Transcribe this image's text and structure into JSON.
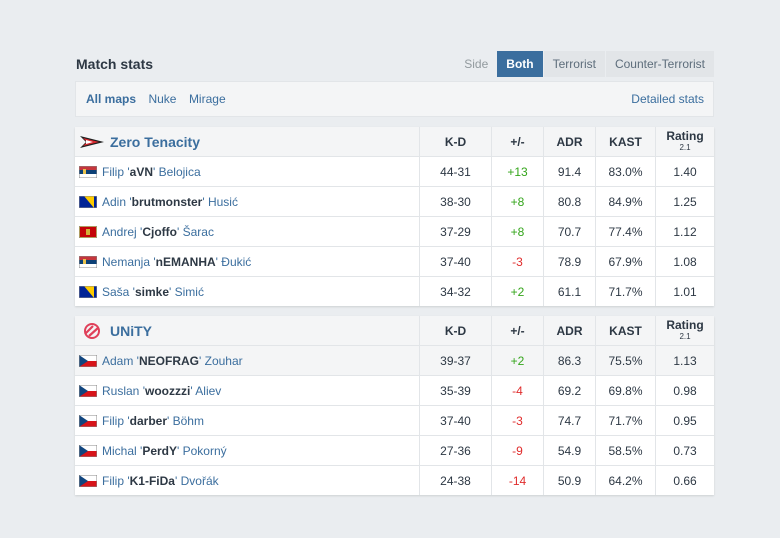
{
  "header": {
    "title": "Match stats",
    "side_label": "Side",
    "side_buttons": [
      "Both",
      "Terrorist",
      "Counter-Terrorist"
    ]
  },
  "maps": {
    "items": [
      "All maps",
      "Nuke",
      "Mirage"
    ],
    "detailed": "Detailed stats"
  },
  "columns": {
    "kd": "K-D",
    "pm": "+/-",
    "adr": "ADR",
    "kast": "KAST",
    "rating": "Rating",
    "rating_ver": "2.1"
  },
  "teams": [
    {
      "name": "Zero Tenacity",
      "players": [
        {
          "first": "Filip '",
          "nick": "aVN",
          "last": "' Belojica",
          "kd": "44-31",
          "pm": "+13",
          "adr": "91.4",
          "kast": "83.0%",
          "rating": "1.40"
        },
        {
          "first": "Adin '",
          "nick": "brutmonster",
          "last": "' Husić",
          "kd": "38-30",
          "pm": "+8",
          "adr": "80.8",
          "kast": "84.9%",
          "rating": "1.25"
        },
        {
          "first": "Andrej '",
          "nick": "Cjoffo",
          "last": "' Šarac",
          "kd": "37-29",
          "pm": "+8",
          "adr": "70.7",
          "kast": "77.4%",
          "rating": "1.12"
        },
        {
          "first": "Nemanja '",
          "nick": "nEMANHA",
          "last": "' Đukić",
          "kd": "37-40",
          "pm": "-3",
          "adr": "78.9",
          "kast": "67.9%",
          "rating": "1.08"
        },
        {
          "first": "Saša '",
          "nick": "simke",
          "last": "' Simić",
          "kd": "34-32",
          "pm": "+2",
          "adr": "61.1",
          "kast": "71.7%",
          "rating": "1.01"
        }
      ]
    },
    {
      "name": "UNiTY",
      "players": [
        {
          "first": "Adam '",
          "nick": "NEOFRAG",
          "last": "' Zouhar",
          "kd": "39-37",
          "pm": "+2",
          "adr": "86.3",
          "kast": "75.5%",
          "rating": "1.13"
        },
        {
          "first": "Ruslan '",
          "nick": "woozzzi",
          "last": "' Aliev",
          "kd": "35-39",
          "pm": "-4",
          "adr": "69.2",
          "kast": "69.8%",
          "rating": "0.98"
        },
        {
          "first": "Filip '",
          "nick": "darber",
          "last": "' Böhm",
          "kd": "37-40",
          "pm": "-3",
          "adr": "74.7",
          "kast": "71.7%",
          "rating": "0.95"
        },
        {
          "first": "Michal '",
          "nick": "PerdY",
          "last": "' Pokorný",
          "kd": "27-36",
          "pm": "-9",
          "adr": "54.9",
          "kast": "58.5%",
          "rating": "0.73"
        },
        {
          "first": "Filip '",
          "nick": "K1-FiDa",
          "last": "' Dvořák",
          "kd": "24-38",
          "pm": "-14",
          "adr": "50.9",
          "kast": "64.2%",
          "rating": "0.66"
        }
      ]
    }
  ],
  "flags": [
    "serbia-flag",
    "bosnia-flag",
    "montenegro-flag",
    "serbia-flag",
    "bosnia-flag",
    "czech-flag",
    "czech-flag",
    "czech-flag",
    "czech-flag",
    "czech-flag"
  ],
  "colors": {
    "accent": "#3b6e9e",
    "positive": "#34a51b",
    "negative": "#e02c2c"
  }
}
